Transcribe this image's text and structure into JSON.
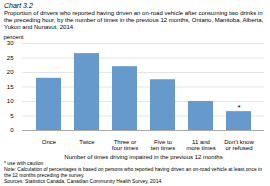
{
  "chart_data": {
    "type": "bar",
    "title": "Chart 3.2",
    "subtitle": "Proportion of drivers who reported having driven an on-road vehicle after consuming two drinks in the preceding hour, by the number of times in the previous 12 months, Ontario, Manitoba, Alberta, Yukon and Nunavut, 2014",
    "ylabel": "percent",
    "xlabel": "Number of times driving impaired in the previous 12 months",
    "categories": [
      "Once",
      "Twice",
      "Three or\nfour times",
      "Five to\nten times",
      "11 and\nmore times",
      "Don't know\nor refused"
    ],
    "values": [
      18.0,
      26.5,
      22.0,
      17.5,
      10.0,
      6.5
    ],
    "color": "#6699cc",
    "ylim": [
      0,
      30
    ],
    "yticks": [
      0,
      5,
      10,
      15,
      20,
      25,
      30
    ],
    "grid": true,
    "annotations": [
      {
        "text": "*",
        "x": "Don't know\nor refused",
        "y": 6.5
      }
    ],
    "notes": [
      "* use with caution",
      "Note: Calculation of percentages is based on persons who reported having driven an on-road vehicle at least once in the 12 months preceding the survey.",
      "Sources: Statistics Canada, Canadian Community Health Survey, 2014."
    ]
  }
}
